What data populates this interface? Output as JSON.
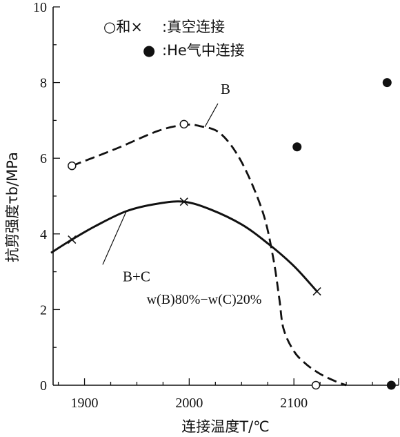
{
  "chart_data": {
    "type": "scatter",
    "title": "",
    "xlabel": "连接温度T/℃",
    "ylabel": "抗剪强度τb/MPa",
    "xlim": [
      1870,
      2200
    ],
    "ylim": [
      0,
      10
    ],
    "xticks": [
      "1900",
      "2000",
      "2100"
    ],
    "yticks": [
      "0",
      "2",
      "4",
      "6",
      "8",
      "10"
    ],
    "grid": false,
    "legend": {
      "placement": "top",
      "entries": [
        {
          "symbols": "○和×",
          "label": ":真空连接"
        },
        {
          "symbols": "●",
          "label": ":He气中连接"
        }
      ]
    },
    "series": [
      {
        "name": "B",
        "marker": "open-circle",
        "line": "dashed",
        "points": [
          [
            1888,
            5.8
          ],
          [
            1995,
            6.9
          ],
          [
            2121,
            0.0
          ]
        ],
        "curve": [
          [
            1888,
            5.8
          ],
          [
            1930,
            6.25
          ],
          [
            1970,
            6.72
          ],
          [
            1995,
            6.88
          ],
          [
            2010,
            6.85
          ],
          [
            2030,
            6.65
          ],
          [
            2050,
            5.9
          ],
          [
            2070,
            4.6
          ],
          [
            2080,
            3.4
          ],
          [
            2086,
            2.3
          ],
          [
            2090,
            1.5
          ],
          [
            2100,
            0.9
          ],
          [
            2112,
            0.55
          ],
          [
            2125,
            0.3
          ],
          [
            2140,
            0.1
          ],
          [
            2150,
            0.0
          ]
        ]
      },
      {
        "name": "B+C w(B)80%−w(C)20%",
        "marker": "cross",
        "line": "solid",
        "points": [
          [
            1888,
            3.85
          ],
          [
            1995,
            4.85
          ],
          [
            2122,
            2.48
          ]
        ],
        "curve": [
          [
            1868,
            3.5
          ],
          [
            1888,
            3.85
          ],
          [
            1910,
            4.2
          ],
          [
            1940,
            4.6
          ],
          [
            1970,
            4.8
          ],
          [
            1995,
            4.85
          ],
          [
            2020,
            4.65
          ],
          [
            2050,
            4.25
          ],
          [
            2075,
            3.75
          ],
          [
            2100,
            3.15
          ],
          [
            2122,
            2.48
          ]
        ]
      },
      {
        "name": "He气中连接",
        "marker": "filled-circle",
        "line": "none",
        "points": [
          [
            2103,
            6.3
          ],
          [
            2189,
            8.0
          ],
          [
            2193,
            0.0
          ]
        ]
      }
    ],
    "annotations": [
      {
        "id": "B",
        "text": "B",
        "at": [
          2030,
          7.7
        ],
        "leader_to": [
          2015,
          6.83
        ]
      },
      {
        "id": "BC1",
        "text": "B+C",
        "at": [
          1920,
          2.75
        ],
        "leader_to": [
          1940,
          4.6
        ]
      },
      {
        "id": "BC2",
        "text": "w(B)80%−w(C)20%",
        "at": [
          1960,
          2.15
        ]
      }
    ]
  }
}
